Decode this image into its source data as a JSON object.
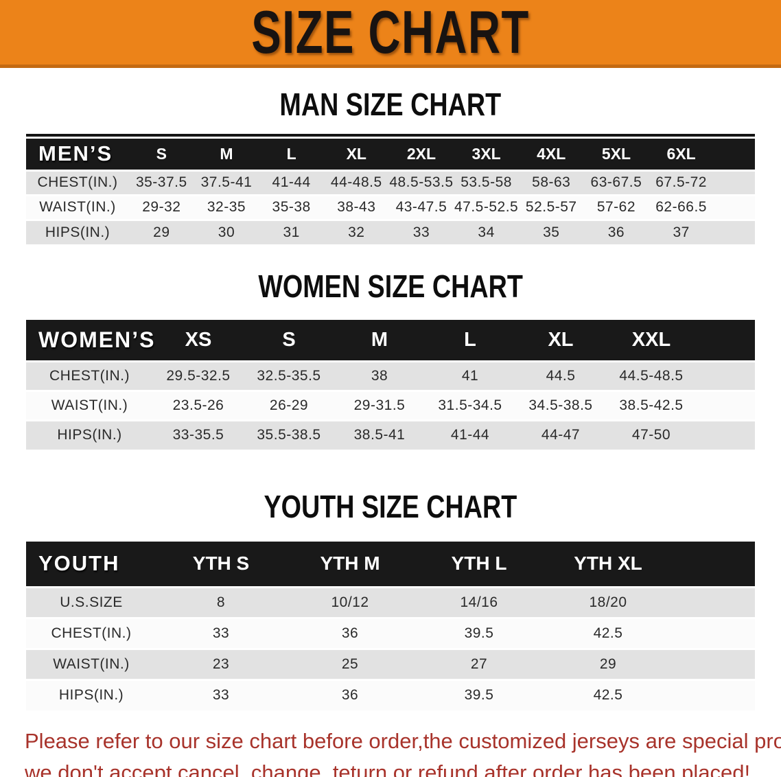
{
  "banner": {
    "title": "SIZE CHART"
  },
  "colors": {
    "banner_bg": "#ec8319",
    "banner_edge": "#c46a12",
    "header_band": "#191919",
    "row_stripe": "#e2e2e2",
    "disclaimer_red": "#a8332b"
  },
  "sections": [
    {
      "title": "MAN SIZE CHART",
      "header_label": "MEN’S",
      "sizes": [
        "S",
        "M",
        "L",
        "XL",
        "2XL",
        "3XL",
        "4XL",
        "5XL",
        "6XL"
      ],
      "rows": [
        {
          "label": "CHEST(IN.)",
          "values": [
            "35-37.5",
            "37.5-41",
            "41-44",
            "44-48.5",
            "48.5-53.5",
            "53.5-58",
            "58-63",
            "63-67.5",
            "67.5-72"
          ]
        },
        {
          "label": "WAIST(IN.)",
          "values": [
            "29-32",
            "32-35",
            "35-38",
            "38-43",
            "43-47.5",
            "47.5-52.5",
            "52.5-57",
            "57-62",
            "62-66.5"
          ]
        },
        {
          "label": "HIPS(IN.)",
          "values": [
            "29",
            "30",
            "31",
            "32",
            "33",
            "34",
            "35",
            "36",
            "37"
          ]
        }
      ]
    },
    {
      "title": "WOMEN SIZE CHART",
      "header_label": "WOMEN’S",
      "sizes": [
        "XS",
        "S",
        "M",
        "L",
        "XL",
        "XXL"
      ],
      "rows": [
        {
          "label": "CHEST(IN.)",
          "values": [
            "29.5-32.5",
            "32.5-35.5",
            "38",
            "41",
            "44.5",
            "44.5-48.5"
          ]
        },
        {
          "label": "WAIST(IN.)",
          "values": [
            "23.5-26",
            "26-29",
            "29-31.5",
            "31.5-34.5",
            "34.5-38.5",
            "38.5-42.5"
          ]
        },
        {
          "label": "HIPS(IN.)",
          "values": [
            "33-35.5",
            "35.5-38.5",
            "38.5-41",
            "41-44",
            "44-47",
            "47-50"
          ]
        }
      ]
    },
    {
      "title": "YOUTH SIZE CHART",
      "header_label": "YOUTH",
      "sizes": [
        "YTH S",
        "YTH M",
        "YTH L",
        "YTH XL"
      ],
      "rows": [
        {
          "label": "U.S.SIZE",
          "values": [
            "8",
            "10/12",
            "14/16",
            "18/20"
          ]
        },
        {
          "label": "CHEST(IN.)",
          "values": [
            "33",
            "36",
            "39.5",
            "42.5"
          ]
        },
        {
          "label": "WAIST(IN.)",
          "values": [
            "23",
            "25",
            "27",
            "29"
          ]
        },
        {
          "label": "HIPS(IN.)",
          "values": [
            "33",
            "36",
            "39.5",
            "42.5"
          ]
        }
      ]
    }
  ],
  "disclaimer": {
    "line1": "Please refer to our size chart before order,the customized jerseys are special products,",
    "line2": "we don't accept cancel, change, teturn or refund after order has been placed!"
  }
}
